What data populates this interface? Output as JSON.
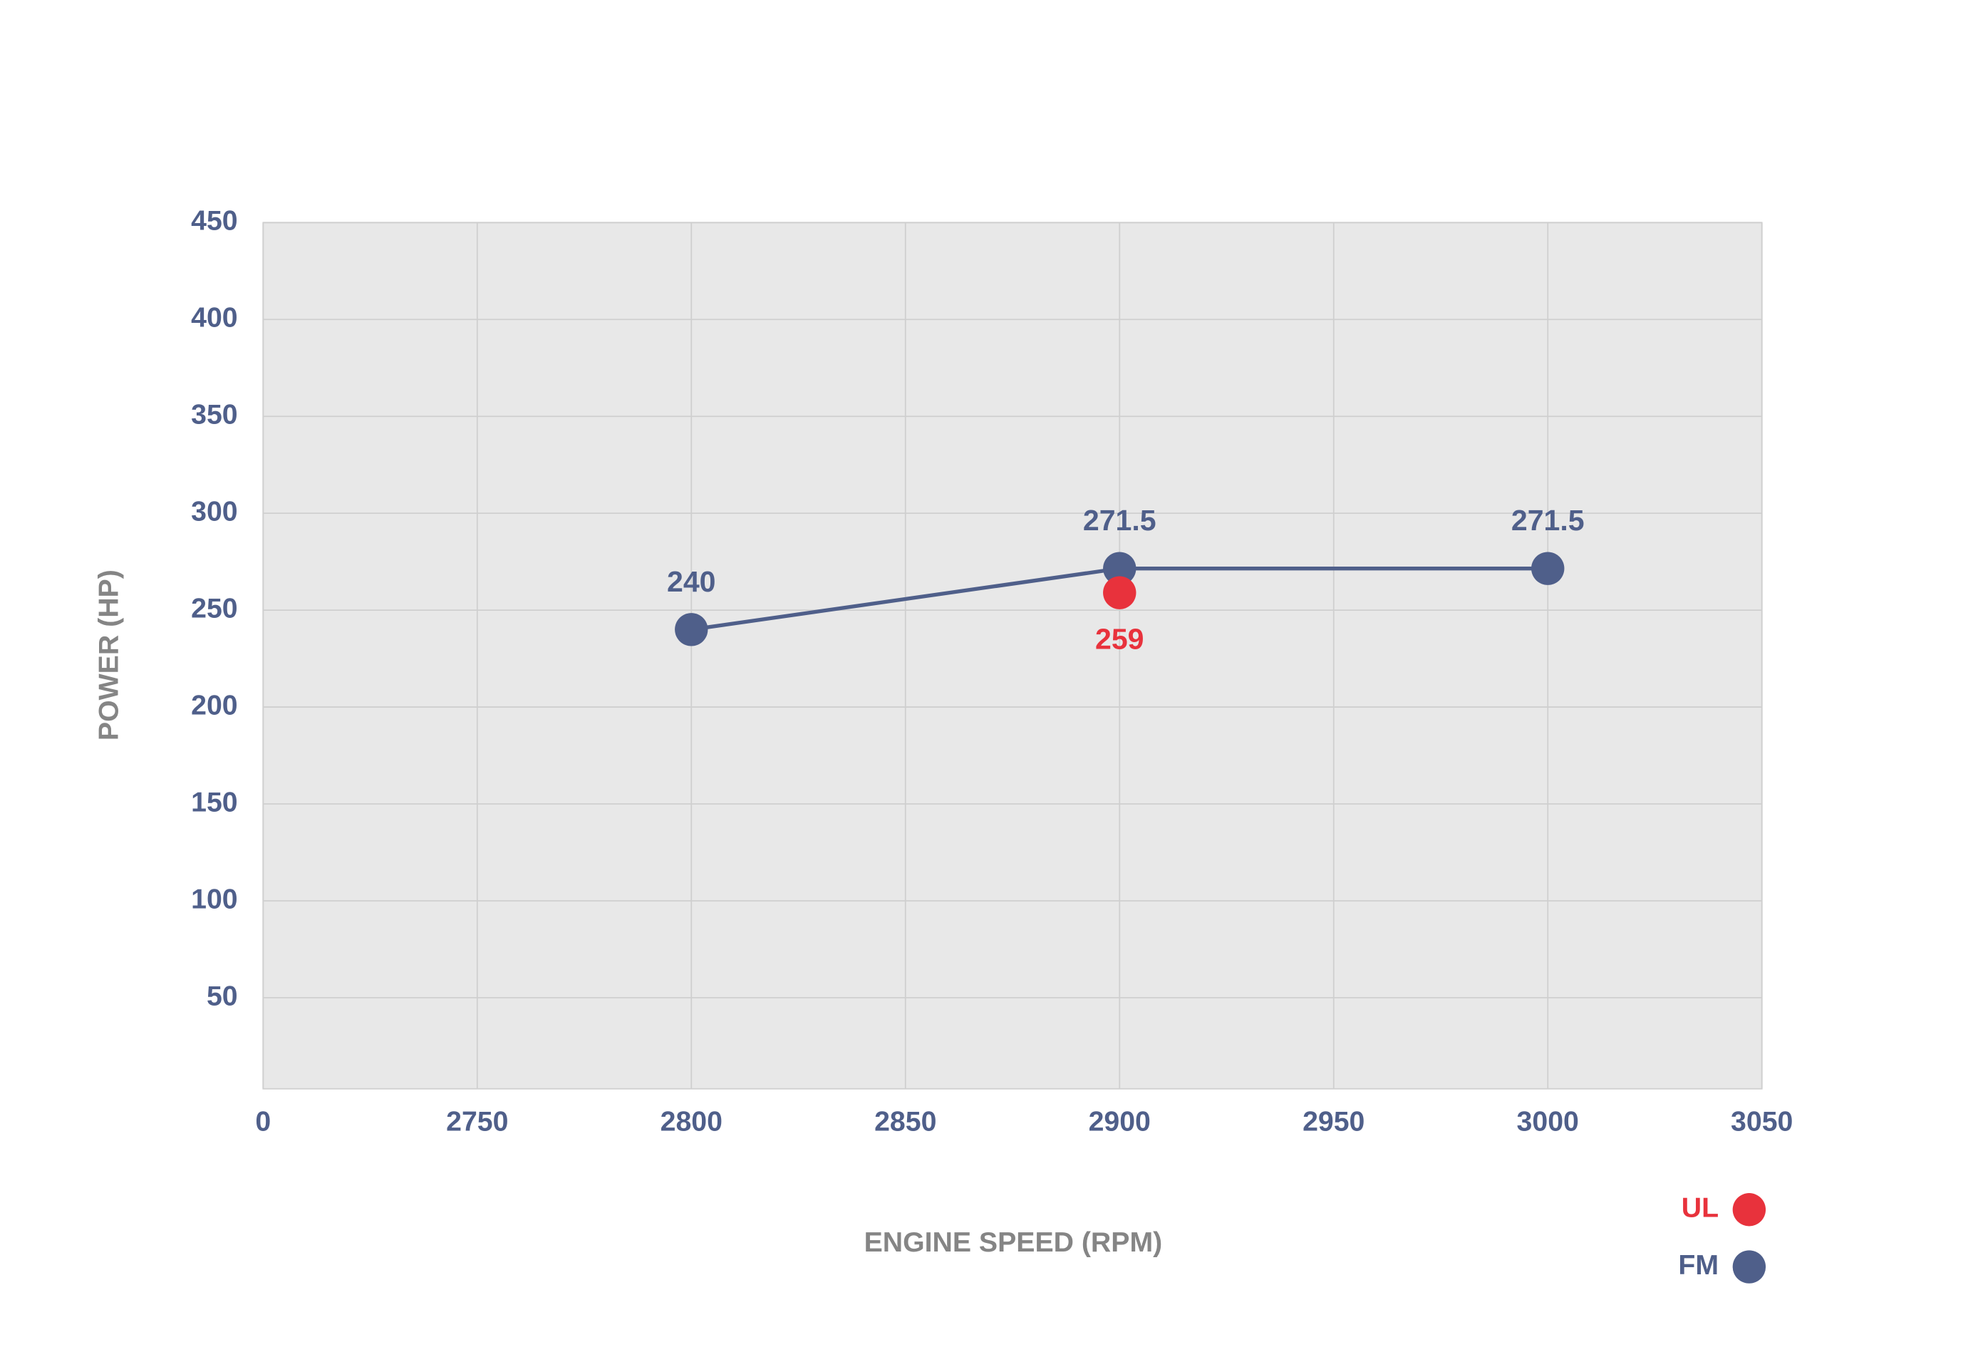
{
  "chart_data": {
    "type": "line",
    "x_label": "ENGINE SPEED (RPM)",
    "y_label": "POWER (HP)",
    "xlim": [
      2700,
      3050
    ],
    "xticks": [
      {
        "value": 2700,
        "label": "0"
      },
      2750,
      2800,
      2850,
      2900,
      2950,
      3000,
      3050
    ],
    "ylim": [
      3,
      450
    ],
    "yticks": [
      50,
      100,
      150,
      200,
      250,
      300,
      350,
      400,
      450
    ],
    "grid": true,
    "legend": "bottom-right",
    "series": [
      {
        "name": "FM",
        "color": "#4f5f8a",
        "line": true,
        "label_position": "above",
        "x": [
          2800,
          2900,
          3000
        ],
        "values": [
          240,
          271.5,
          271.5
        ]
      },
      {
        "name": "UL",
        "color": "#e8323c",
        "line": false,
        "label_position": "below",
        "x": [
          2900
        ],
        "values": [
          259
        ]
      }
    ]
  }
}
